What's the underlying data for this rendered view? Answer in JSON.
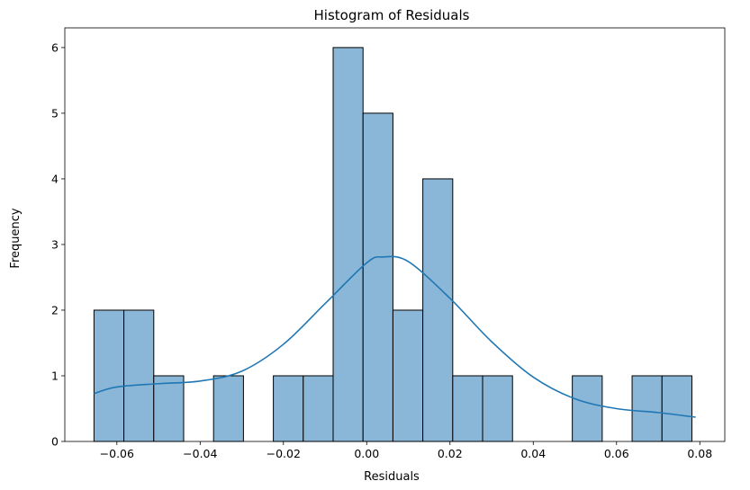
{
  "chart_data": {
    "type": "histogram",
    "title": "Histogram of Residuals",
    "xlabel": "Residuals",
    "ylabel": "Frequency",
    "xlim": [
      -0.0725,
      0.086
    ],
    "ylim": [
      0,
      6.3
    ],
    "xticks": [
      -0.06,
      -0.04,
      -0.02,
      0.0,
      0.02,
      0.04,
      0.06,
      0.08
    ],
    "xtick_labels": [
      "−0.06",
      "−0.04",
      "−0.02",
      "0.00",
      "0.02",
      "0.04",
      "0.06",
      "0.08"
    ],
    "yticks": [
      0,
      1,
      2,
      3,
      4,
      5,
      6
    ],
    "ytick_labels": [
      "0",
      "1",
      "2",
      "3",
      "4",
      "5",
      "6"
    ],
    "bin_start": -0.0655,
    "bin_width": 0.00718,
    "counts": [
      2,
      2,
      1,
      0,
      1,
      0,
      1,
      1,
      6,
      5,
      2,
      4,
      1,
      1,
      0,
      0,
      1,
      0,
      1,
      1
    ],
    "kde": {
      "x": [
        -0.0655,
        -0.06,
        -0.05,
        -0.04,
        -0.03,
        -0.02,
        -0.01,
        0.0,
        0.004,
        0.01,
        0.02,
        0.03,
        0.04,
        0.05,
        0.06,
        0.07,
        0.079
      ],
      "y": [
        0.73,
        0.83,
        0.88,
        0.92,
        1.07,
        1.48,
        2.1,
        2.72,
        2.81,
        2.74,
        2.18,
        1.52,
        0.98,
        0.65,
        0.5,
        0.44,
        0.37
      ]
    },
    "colors": {
      "bar_fill": "#8ab6d7",
      "bar_edge": "#000000",
      "kde_line": "#1f77b4"
    },
    "grid": false,
    "legend": "none"
  }
}
